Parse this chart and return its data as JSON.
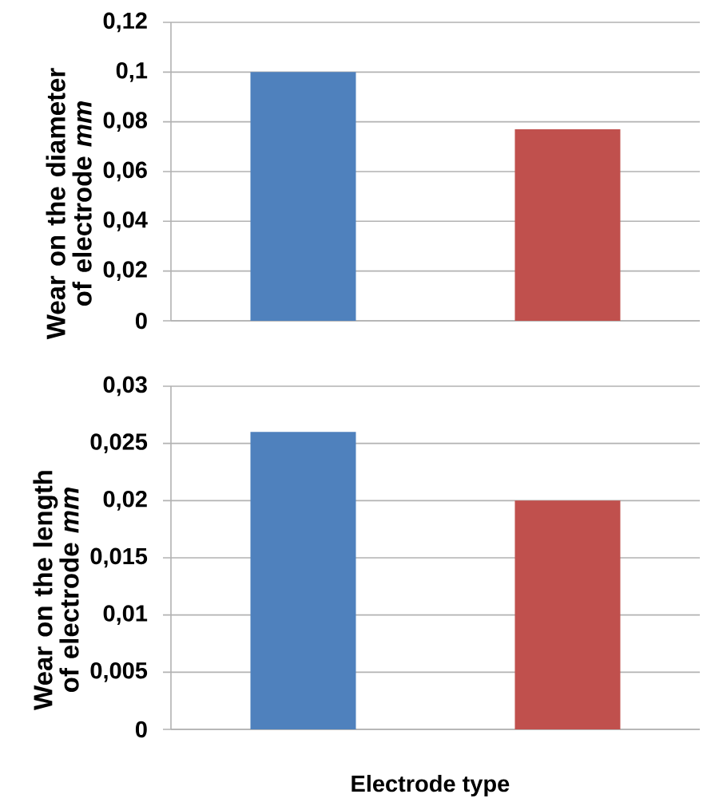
{
  "chart_data": [
    {
      "type": "bar",
      "ylabel": "Wear on the diameter of electrode *mm*",
      "categories": [
        null,
        null
      ],
      "values": [
        0.1,
        0.077
      ],
      "colors": [
        "#4f81bd",
        "#c0504d"
      ],
      "ylim": [
        0,
        0.12
      ],
      "yticks": [
        0,
        {
          "value": 0.02,
          "label": "0,02"
        },
        {
          "value": 0.04,
          "label": "0,04"
        },
        {
          "value": 0.06,
          "label": "0,06"
        },
        {
          "value": 0.08,
          "label": "0,08"
        },
        {
          "value": 0.1,
          "label": "0,1"
        },
        {
          "value": 0.12,
          "label": "0,12"
        }
      ],
      "grid": "y"
    },
    {
      "type": "bar",
      "xlabel": "Electrode type",
      "ylabel": "Wear on the length of electrode *mm*",
      "categories": [
        null,
        null
      ],
      "values": [
        0.026,
        0.02
      ],
      "colors": [
        "#4f81bd",
        "#c0504d"
      ],
      "ylim": [
        0,
        0.03
      ],
      "yticks": [
        0,
        {
          "value": 0.005,
          "label": "0,005"
        },
        {
          "value": 0.01,
          "label": "0,01"
        },
        {
          "value": 0.015,
          "label": "0,015"
        },
        {
          "value": 0.02,
          "label": "0,02"
        },
        {
          "value": 0.025,
          "label": "0,025"
        },
        {
          "value": 0.03,
          "label": "0,03"
        }
      ],
      "grid": "y"
    }
  ]
}
